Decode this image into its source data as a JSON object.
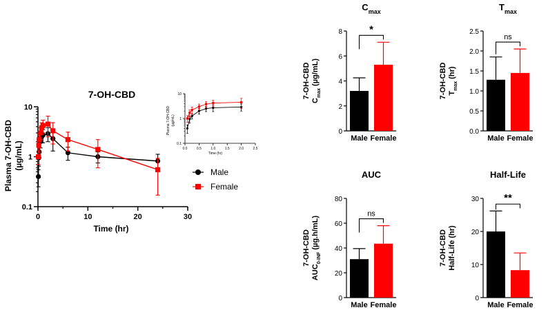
{
  "colors": {
    "male": "#000000",
    "female": "#ff0000",
    "axis": "#000000"
  },
  "chart_data": [
    {
      "type": "line",
      "title": "7-OH-CBD",
      "xlabel": "Time (hr)",
      "ylabel": "Plasma 7-OH-CBD",
      "ylabel_unit": "(µg/mL)",
      "yscale": "log",
      "xlim": [
        0,
        30
      ],
      "ylim": [
        0.1,
        10
      ],
      "xticks": [
        "0",
        "10",
        "20",
        "30"
      ],
      "yticks": [
        "0.1",
        "1",
        "10"
      ],
      "legend": {
        "position": "right",
        "entries": [
          "Male",
          "Female"
        ]
      },
      "series": [
        {
          "name": "Male",
          "color": "#000000",
          "marker": "circle",
          "x": [
            0.083,
            0.167,
            0.25,
            0.5,
            0.75,
            1,
            2,
            3,
            6,
            12,
            24
          ],
          "y": [
            0.4,
            0.95,
            1.25,
            2.0,
            2.5,
            2.7,
            2.9,
            2.3,
            1.2,
            1.0,
            0.82
          ],
          "err": [
            0.15,
            0.3,
            0.3,
            0.5,
            0.6,
            0.8,
            0.9,
            1.0,
            0.35,
            0.25,
            0.3
          ]
        },
        {
          "name": "Female",
          "color": "#ff0000",
          "marker": "square",
          "x": [
            0.083,
            0.167,
            0.25,
            0.5,
            0.75,
            1,
            2,
            3,
            6,
            12,
            24
          ],
          "y": [
            1.0,
            1.7,
            2.2,
            3.0,
            3.8,
            4.2,
            4.5,
            3.3,
            2.2,
            1.4,
            0.55
          ],
          "err": [
            0.3,
            0.5,
            0.7,
            0.8,
            1.0,
            1.2,
            2.0,
            1.5,
            0.9,
            0.8,
            0.38
          ]
        }
      ]
    },
    {
      "type": "line",
      "inset": true,
      "xlabel": "Time (hr)",
      "ylabel": "Plasma 7-OH-CBD",
      "ylabel_unit": "(µg/mL)",
      "yscale": "log",
      "xlim": [
        0,
        2.5
      ],
      "ylim": [
        0.1,
        10
      ],
      "xticks": [
        "0.0",
        "0.5",
        "1.0",
        "1.5",
        "2.0",
        "2.5"
      ],
      "yticks": [
        "0.1",
        "1",
        "10"
      ],
      "series": [
        {
          "name": "Male",
          "color": "#000000",
          "x": [
            0.083,
            0.167,
            0.25,
            0.5,
            0.75,
            1,
            2
          ],
          "y": [
            0.4,
            0.95,
            1.25,
            2.0,
            2.5,
            2.7,
            2.9
          ],
          "err": [
            0.15,
            0.3,
            0.3,
            0.5,
            0.6,
            0.8,
            0.9
          ]
        },
        {
          "name": "Female",
          "color": "#ff0000",
          "x": [
            0.083,
            0.167,
            0.25,
            0.5,
            0.75,
            1,
            2
          ],
          "y": [
            1.0,
            1.7,
            2.2,
            3.0,
            3.8,
            4.2,
            4.5
          ],
          "err": [
            0.3,
            0.5,
            0.7,
            0.8,
            1.0,
            1.2,
            2.0
          ]
        }
      ]
    },
    {
      "type": "bar",
      "title": "C",
      "title_sub": "max",
      "ylabel": "7-OH-CBD",
      "ylabel2_main": "C",
      "ylabel2_sub": "max",
      "ylabel2_rest": " (µg/mL)",
      "categories": [
        "Male",
        "Female"
      ],
      "values": [
        3.2,
        5.3
      ],
      "errors": [
        1.05,
        1.8
      ],
      "ylim": [
        0,
        8
      ],
      "yticks": [
        0,
        2,
        4,
        6,
        8
      ],
      "ytick_labels": [
        "0",
        "2",
        "4",
        "6",
        "8"
      ],
      "significance": "*"
    },
    {
      "type": "bar",
      "title": "T",
      "title_sub": "max",
      "ylabel": "7-OH-CBD",
      "ylabel2_main": "T",
      "ylabel2_sub": "max",
      "ylabel2_rest": " (hr)",
      "categories": [
        "Male",
        "Female"
      ],
      "values": [
        1.28,
        1.45
      ],
      "errors": [
        0.57,
        0.6
      ],
      "ylim": [
        0,
        2.5
      ],
      "yticks": [
        0,
        0.5,
        1,
        1.5,
        2,
        2.5
      ],
      "ytick_labels": [
        "0.0",
        "0.5",
        "1.0",
        "1.5",
        "2.0",
        "2.5"
      ],
      "significance": "ns"
    },
    {
      "type": "bar",
      "title": "AUC",
      "title_sub": "",
      "ylabel": "7-OH-CBD",
      "ylabel2_main": "AUC",
      "ylabel2_sub": "0-INF",
      "ylabel2_rest": " (µg.h/mL)",
      "categories": [
        "Male",
        "Female"
      ],
      "values": [
        31,
        43.5
      ],
      "errors": [
        8.5,
        14.5
      ],
      "ylim": [
        0,
        80
      ],
      "yticks": [
        0,
        20,
        40,
        60,
        80
      ],
      "ytick_labels": [
        "0",
        "20",
        "40",
        "60",
        "80"
      ],
      "significance": "ns"
    },
    {
      "type": "bar",
      "title": "Half-Life",
      "title_sub": "",
      "ylabel": "7-OH-CBD",
      "ylabel2_main": "Half-Life (hr)",
      "ylabel2_sub": "",
      "ylabel2_rest": "",
      "categories": [
        "Male",
        "Female"
      ],
      "values": [
        20,
        8.3
      ],
      "errors": [
        6.2,
        5.2
      ],
      "ylim": [
        0,
        30
      ],
      "yticks": [
        0,
        10,
        20,
        30
      ],
      "ytick_labels": [
        "0",
        "10",
        "20",
        "30"
      ],
      "significance": "**"
    }
  ]
}
